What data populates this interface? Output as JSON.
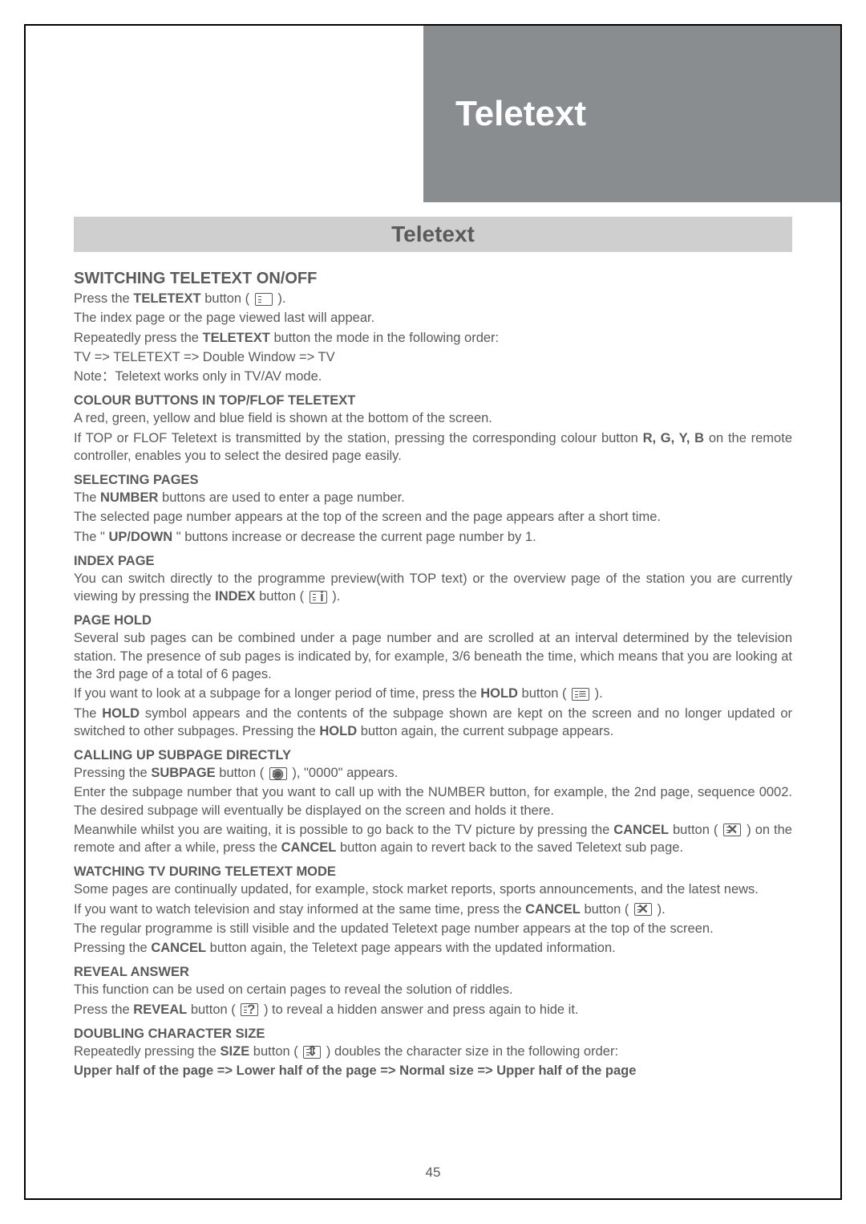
{
  "header": {
    "chapter_title": "Teletext"
  },
  "banner": {
    "title": "Teletext"
  },
  "section1": {
    "heading": "SWITCHING TELETEXT ON/OFF",
    "line1_pre": "Press the ",
    "line1_bold": "TELETEXT",
    "line1_post": " button ( ",
    "line1_end": " ).",
    "line2": "The index page or the page viewed last will appear.",
    "line3_pre": "Repeatedly press the ",
    "line3_bold": "TELETEXT",
    "line3_post": " button the mode in the following order:",
    "line4": "TV => TELETEXT => Double Window => TV",
    "note_label": "Note：",
    "note_text": "Teletext works only in TV/AV mode."
  },
  "section2": {
    "heading": "COLOUR BUTTONS IN TOP/FLOF TELETEXT",
    "line1": "A red, green, yellow and blue field is shown at the bottom of the screen.",
    "line2_pre": "If TOP or FLOF Teletext is transmitted by the station, pressing the corresponding colour button ",
    "line2_bold": "R, G, Y, B",
    "line2_post": " on the remote controller, enables you to select the desired page easily."
  },
  "section3": {
    "heading": "SELECTING PAGES",
    "line1_pre": "The ",
    "line1_bold": "NUMBER",
    "line1_post": " buttons are used to enter a page number.",
    "line2": "The selected page number appears at the top of the screen and the page appears after a short time.",
    "line3_pre": "The \"    ",
    "line3_bold": "UP/DOWN",
    "line3_post": "    \" buttons increase or decrease the current page number by 1."
  },
  "section4": {
    "heading": "INDEX PAGE",
    "line1_pre": "You can switch directly to the programme preview(with TOP text) or the overview page of the station you are currently viewing by pressing the ",
    "line1_bold": "INDEX",
    "line1_post": " button ( ",
    "line1_end": " )."
  },
  "section5": {
    "heading": "PAGE HOLD",
    "line1": "Several sub pages can be combined under a page number and are scrolled at an interval determined by the television station. The presence of sub pages is indicated by, for example, 3/6 beneath the time, which means that you are looking at the 3rd page of a total of 6 pages.",
    "line2_pre": "If you want to look at a subpage for a longer period of time, press the ",
    "line2_bold": "HOLD",
    "line2_post": " button ( ",
    "line2_end": " ).",
    "line3_pre": "The ",
    "line3_bold1": "HOLD",
    "line3_mid": " symbol appears and the contents of the subpage shown are kept on the screen and no longer updated or switched to other subpages. Pressing the ",
    "line3_bold2": "HOLD",
    "line3_post": " button again, the current subpage appears."
  },
  "section6": {
    "heading": "CALLING UP SUBPAGE DIRECTLY",
    "line1_pre": "Pressing the ",
    "line1_bold": "SUBPAGE",
    "line1_post": " button ( ",
    "line1_end": " ), \"0000\" appears.",
    "line2": "Enter the subpage number that you want to call up with the NUMBER button, for example, the 2nd page, sequence 0002. The desired subpage will eventually be displayed on the screen and holds it there.",
    "line3_pre": "Meanwhile whilst you are waiting, it is possible to go back to the TV picture by pressing the ",
    "line3_bold1": "CANCEL",
    "line3_mid1": " button ( ",
    "line3_mid2": " ) on the remote and after a while, press the ",
    "line3_bold2": "CANCEL",
    "line3_post": " button again to revert back to the saved Teletext sub page."
  },
  "section7": {
    "heading": "WATCHING TV DURING TELETEXT MODE",
    "line1": "Some pages are continually updated, for example, stock market reports, sports announcements, and the latest news.",
    "line2_pre": "If you want to watch television and stay informed at the same time, press the ",
    "line2_bold": "CANCEL",
    "line2_post": " button ( ",
    "line2_end": " ).",
    "line3": "The regular programme is still visible and the updated Teletext page number appears at the top of the screen.",
    "line4_pre": "Pressing the ",
    "line4_bold": "CANCEL",
    "line4_post": " button again, the Teletext page appears with the updated information."
  },
  "section8": {
    "heading": "REVEAL ANSWER",
    "line1": "This function can be used on certain pages to reveal the solution of riddles.",
    "line2_pre": "Press the ",
    "line2_bold": "REVEAL",
    "line2_post": " button ( ",
    "line2_end": " ) to reveal a hidden answer and press again to hide it."
  },
  "section9": {
    "heading": "DOUBLING CHARACTER SIZE",
    "line1_pre": "Repeatedly pressing the ",
    "line1_bold": "SIZE",
    "line1_post": " button ( ",
    "line1_end": " ) doubles the character size in the following order:",
    "line2": "Upper half of the page => Lower half of the page => Normal size => Upper half of the page"
  },
  "icons": {
    "teletext": "",
    "index": "i",
    "hold": "≡",
    "subpage": "◉",
    "cancel": "✕",
    "reveal": "?",
    "size": "⇕"
  },
  "page_number": "45"
}
